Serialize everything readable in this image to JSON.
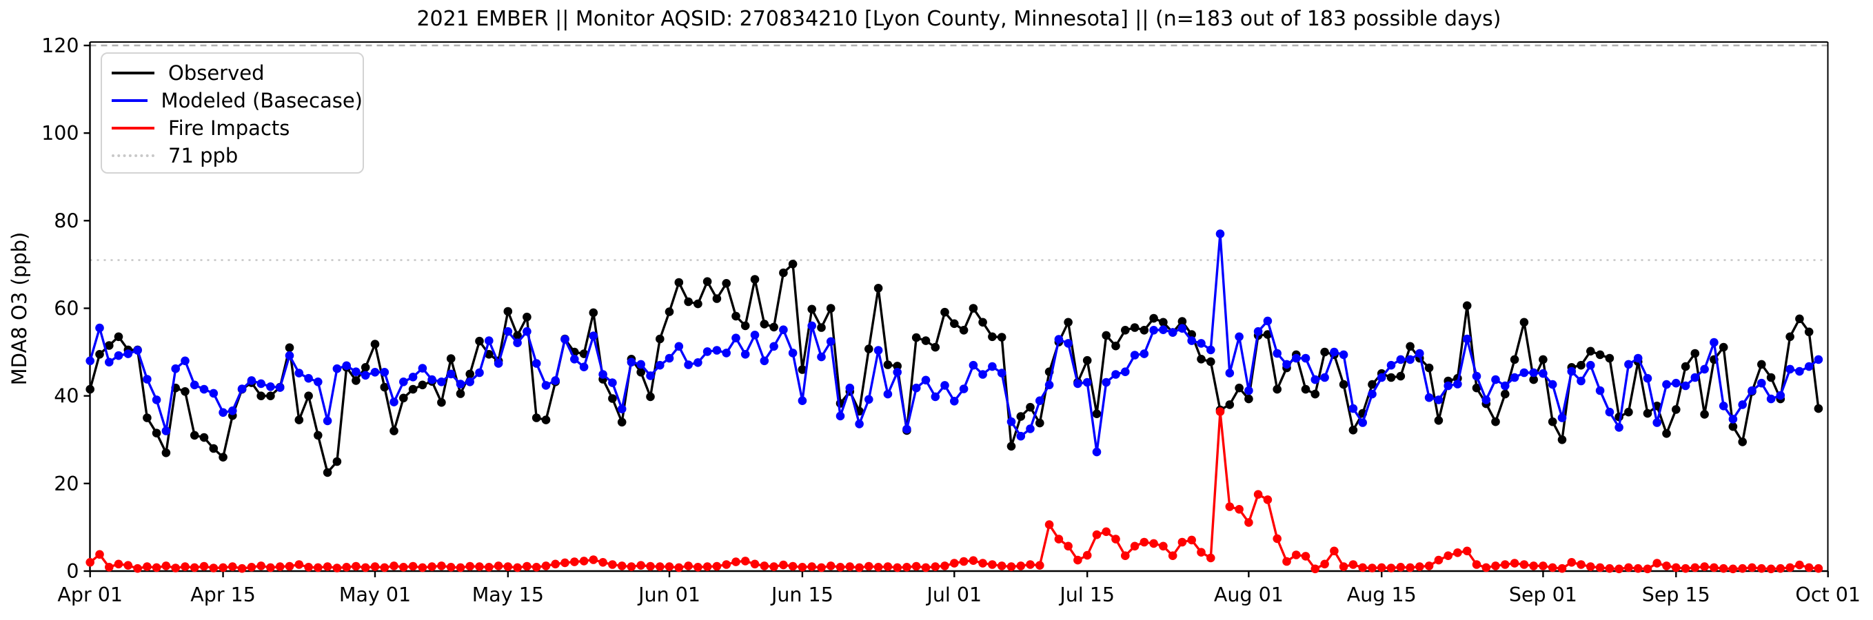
{
  "chart_data": {
    "type": "line",
    "title": "2021 EMBER || Monitor AQSID: 270834210 [Lyon County, Minnesota] || (n=183 out of 183 possible days)",
    "ylabel": "MDA8 O3 (ppb)",
    "xlabel": "",
    "ylim": [
      0,
      120.8
    ],
    "grid": false,
    "legend_position": "upper-left",
    "n_days": 183,
    "x_start": "Apr 01",
    "x_end": "Sep 30",
    "y_ticks": [
      0,
      20,
      40,
      60,
      80,
      100,
      120
    ],
    "x_ticks": [
      {
        "label": "Apr 01",
        "day": 1
      },
      {
        "label": "Apr 15",
        "day": 15
      },
      {
        "label": "May 01",
        "day": 31
      },
      {
        "label": "May 15",
        "day": 45
      },
      {
        "label": "Jun 01",
        "day": 62
      },
      {
        "label": "Jun 15",
        "day": 76
      },
      {
        "label": "Jul 01",
        "day": 92
      },
      {
        "label": "Jul 15",
        "day": 106
      },
      {
        "label": "Aug 01",
        "day": 123
      },
      {
        "label": "Aug 15",
        "day": 137
      },
      {
        "label": "Sep 01",
        "day": 154
      },
      {
        "label": "Sep 15",
        "day": 168
      },
      {
        "label": "Oct 01",
        "day": 184
      }
    ],
    "reference_lines": [
      {
        "label": "71 ppb",
        "value": 71,
        "color": "#c8c8c8",
        "style": "dotted"
      },
      {
        "label": "120 ppb",
        "value": 120,
        "color": "#b0b0b0",
        "style": "dashed"
      }
    ],
    "series": [
      {
        "name": "Observed",
        "color": "#000000",
        "values": [
          41.5,
          49.5,
          51.5,
          53.5,
          50.5,
          50.5,
          35,
          31.5,
          27,
          41.8,
          41,
          31,
          30.5,
          28,
          26,
          35.5,
          41.5,
          43,
          40,
          40,
          42,
          51,
          34.5,
          40,
          31,
          22.5,
          25,
          46.5,
          43.5,
          46.5,
          51.8,
          42,
          32,
          39.5,
          41.5,
          42.5,
          43.3,
          38.5,
          48.5,
          40.5,
          45,
          52.5,
          49.5,
          48,
          59.3,
          53.8,
          58,
          35,
          34.5,
          43.2,
          53,
          50,
          49.6,
          59,
          43.8,
          39.4,
          34,
          48.4,
          45.4,
          39.8,
          53,
          59.2,
          65.9,
          61.5,
          61,
          66.1,
          62.2,
          65.7,
          58.2,
          56,
          66.6,
          56.4,
          55.7,
          68.1,
          70.1,
          46,
          59.8,
          55.6,
          60,
          38.3,
          41,
          36.5,
          50.7,
          64.6,
          47.1,
          46.8,
          32.1,
          53.3,
          52.6,
          51.1,
          59.1,
          56.5,
          55,
          60,
          56.8,
          53.5,
          53.4,
          28.5,
          35.3,
          37.4,
          33.8,
          45.5,
          52.3,
          56.8,
          43.1,
          48.1,
          35.9,
          53.8,
          51.4,
          55,
          55.6,
          55,
          57.7,
          56.8,
          54.5,
          57,
          54,
          48.4,
          47.8,
          36.8,
          38,
          41.8,
          39.3,
          53.8,
          54,
          41.5,
          46.4,
          49.4,
          41.5,
          40.4,
          50,
          49.4,
          42.6,
          32.2,
          36,
          42.6,
          45.1,
          44.2,
          44.5,
          51.3,
          48.6,
          46.4,
          34.4,
          43.4,
          44,
          60.6,
          41.8,
          38.2,
          34.1,
          40.4,
          48.3,
          56.8,
          43.7,
          48.3,
          34.1,
          30,
          46.5,
          47,
          50.2,
          49.4,
          48.6,
          35.2,
          36.3,
          47.8,
          36,
          37.7,
          31.4,
          36.9,
          46.7,
          49.7,
          35.8,
          48.3,
          51.1,
          33,
          29.5,
          41,
          47.2,
          44.2,
          39.3,
          53.5,
          57.6,
          54.6,
          37.1
        ]
      },
      {
        "name": "Modeled (Basecase)",
        "color": "#0000ff",
        "values": [
          48,
          55.5,
          47.7,
          49.2,
          49.6,
          50.4,
          43.8,
          39.1,
          32,
          46.2,
          48,
          42.5,
          41.5,
          40.6,
          36.2,
          36.6,
          41.6,
          43.5,
          42.8,
          42.1,
          41.9,
          49.2,
          45.2,
          44,
          43.2,
          34.3,
          46.2,
          46.9,
          45.5,
          44.7,
          45.4,
          45.4,
          38.6,
          43.2,
          44.3,
          46.3,
          43.7,
          43.2,
          45,
          42.7,
          43.2,
          45.3,
          52.6,
          47.4,
          54.7,
          52.1,
          54.7,
          47.4,
          42.4,
          43.5,
          52.9,
          48.4,
          46.6,
          53.7,
          44.9,
          43,
          37,
          47.7,
          47.2,
          44.6,
          47,
          48.6,
          51.3,
          47.1,
          47.6,
          50.1,
          50.4,
          49.8,
          53.2,
          49.5,
          53.9,
          48,
          51.3,
          55.1,
          49.8,
          38.9,
          56,
          48.9,
          52.4,
          35.4,
          41.8,
          33.6,
          39.2,
          50.4,
          40.4,
          45.4,
          32.4,
          41.8,
          43.6,
          39.8,
          42.4,
          38.8,
          41.6,
          47,
          44.9,
          46.7,
          45.2,
          34.1,
          30.8,
          32.5,
          38.9,
          42.5,
          52.9,
          52,
          42.8,
          43.1,
          27.2,
          43.1,
          44.9,
          45.5,
          49.3,
          49.6,
          55,
          55.1,
          54.5,
          55.4,
          52.6,
          52,
          50.5,
          77,
          45.2,
          53.5,
          41.2,
          54.7,
          57.1,
          49.7,
          47.2,
          48.6,
          48.6,
          43.7,
          44.2,
          50,
          49.4,
          37.1,
          33.9,
          40.4,
          44.2,
          47,
          48.3,
          48.3,
          49.7,
          39.6,
          39.1,
          42.3,
          42.7,
          53,
          44.5,
          39.1,
          43.7,
          42.3,
          44.2,
          45.3,
          45.3,
          45.1,
          42.6,
          35,
          45.6,
          43.4,
          47,
          41.2,
          36.3,
          32.8,
          47.2,
          48.6,
          44,
          33.9,
          42.6,
          42.9,
          42.3,
          44.2,
          46.1,
          52.2,
          37.7,
          34.7,
          38,
          41.2,
          42.9,
          39.3,
          40.1,
          46.1,
          45.6,
          46.7,
          48.3
        ]
      },
      {
        "name": "Fire Impacts",
        "color": "#ff0000",
        "values": [
          2,
          3.8,
          0.9,
          1.6,
          1.3,
          0.6,
          1,
          0.8,
          1.2,
          0.7,
          1,
          0.8,
          1.1,
          0.7,
          0.8,
          1,
          0.6,
          0.9,
          1.2,
          0.8,
          1,
          1.1,
          1.5,
          0.9,
          0.8,
          1,
          0.7,
          0.9,
          1.1,
          0.8,
          1,
          0.8,
          1.2,
          0.9,
          1.1,
          0.8,
          1,
          1.2,
          0.9,
          0.8,
          1.1,
          1,
          0.9,
          1.2,
          1,
          0.8,
          1.1,
          0.9,
          1.2,
          1.6,
          1.9,
          2.1,
          2.3,
          2.6,
          2,
          1.5,
          1.2,
          1,
          1.3,
          1.1,
          1,
          1,
          0.8,
          1.2,
          0.9,
          1,
          1.1,
          1.5,
          2.1,
          2.3,
          1.6,
          1.2,
          1,
          1.4,
          1.1,
          0.9,
          1,
          0.8,
          1.2,
          0.9,
          1,
          0.8,
          1.1,
          0.9,
          1,
          0.8,
          0.9,
          1.1,
          0.8,
          1,
          1.2,
          1.8,
          2.2,
          2.4,
          1.8,
          1.5,
          1.2,
          1,
          1.2,
          1.5,
          1.3,
          10.6,
          7.3,
          5.7,
          2.5,
          3.6,
          8.3,
          9,
          7.3,
          3.5,
          5.7,
          6.6,
          6.3,
          5.7,
          3.5,
          6.6,
          7.1,
          4.3,
          3,
          36.4,
          14.7,
          14.1,
          11.1,
          17.5,
          16.3,
          7.4,
          2.2,
          3.7,
          3.4,
          0.5,
          1.6,
          4.6,
          1,
          1.5,
          0.8,
          0.7,
          0.8,
          0.7,
          0.9,
          0.8,
          1,
          1.2,
          2.5,
          3.5,
          4.2,
          4.6,
          1.5,
          0.8,
          1.2,
          1.5,
          1.8,
          1.5,
          1.2,
          1.2,
          0.8,
          0.6,
          2,
          1.5,
          1,
          0.8,
          0.6,
          0.5,
          0.8,
          0.6,
          0.5,
          1.8,
          1.2,
          0.8,
          0.6,
          0.8,
          1,
          0.8,
          0.6,
          0.5,
          0.6,
          0.8,
          0.6,
          0.5,
          0.6,
          0.8,
          1.4,
          0.8,
          0.6
        ]
      }
    ]
  }
}
